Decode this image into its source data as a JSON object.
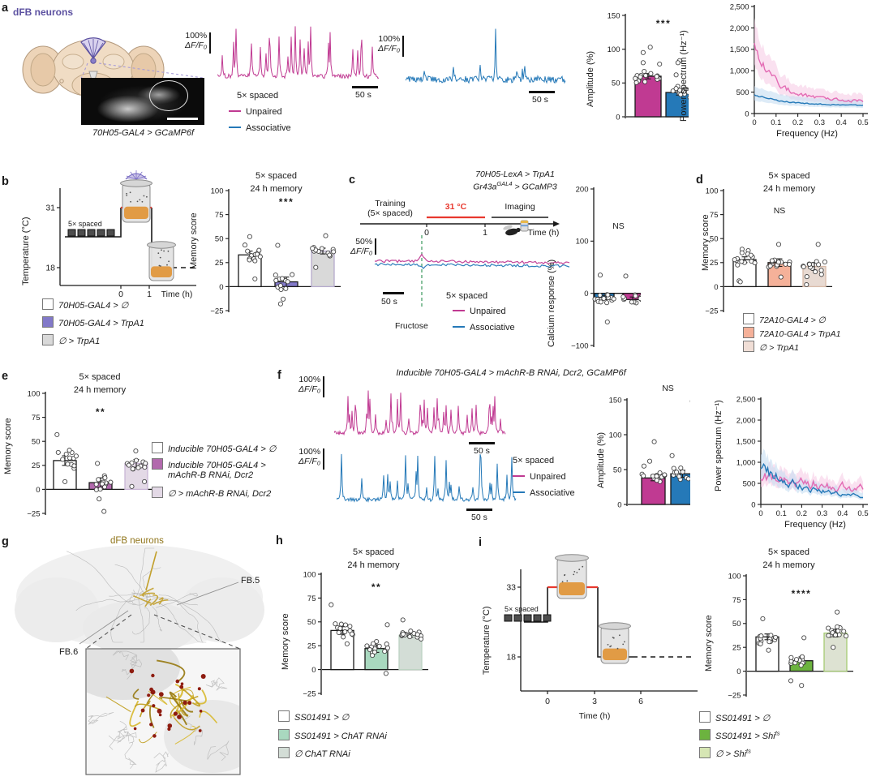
{
  "colors": {
    "unpaired": "#c03a92",
    "associative": "#2579b8",
    "red": "#e8392f",
    "purple": "#5b50a0",
    "dfb_gold": "#8f7419",
    "green_marker": "#4aa06a"
  },
  "panel_a": {
    "label": "a",
    "brain_title": "dFB neurons",
    "caption": "70H05-GAL4 > GCaMP6f",
    "scale_pct": "100%",
    "scale_df": "ΔF/F₀",
    "timebar": "50 s",
    "legend_title": "5× spaced",
    "legend_unpaired": "Unpaired",
    "legend_associative": "Associative"
  },
  "panel_b": {
    "label": "b",
    "legend": [
      {
        "label": "70H05-GAL4 > ∅",
        "swatch": "#ffffff"
      },
      {
        "label": "70H05-GAL4 > TrpA1",
        "swatch": "#8279c9"
      },
      {
        "label": "∅ > TrpA1",
        "swatch": "#d9d9d9"
      }
    ]
  },
  "panel_c": {
    "label": "c",
    "header1": "70H05-LexA > TrpA1",
    "header2": {
      "base": "Gr43a",
      "sup": "GAL4",
      "rest": " > GCaMP3"
    },
    "training1": "Training",
    "training2": "(5× spaced)",
    "temp": "31 °C",
    "imaging": "Imaging",
    "t0": "0",
    "t1": "1",
    "xlabel": "Time (h)",
    "scale_pct": "50%",
    "scale_df": "ΔF/F₀",
    "timebar": "50 s",
    "fructose": "Fructose",
    "legend_title": "5× spaced",
    "legend_unpaired": "Unpaired",
    "legend_associative": "Associative"
  },
  "panel_d": {
    "label": "d",
    "legend": [
      {
        "label": "72A10-GAL4 > ∅",
        "swatch": "#ffffff"
      },
      {
        "label": "72A10-GAL4 > TrpA1",
        "swatch": "#f5b199"
      },
      {
        "label": "∅ > TrpA1",
        "swatch": "#f0ded6"
      }
    ]
  },
  "panel_e": {
    "label": "e",
    "legend": [
      {
        "lines": [
          "Inducible 70H05-GAL4 > ∅"
        ],
        "swatch": "#ffffff"
      },
      {
        "lines": [
          "Inducible 70H05-GAL4 >",
          "mAchR-B RNAi, Dcr2"
        ],
        "swatch": "#b269ad"
      },
      {
        "lines": [
          "∅ > mAchR-B RNAi, Dcr2"
        ],
        "swatch": "#e3d9e6"
      }
    ]
  },
  "panel_f": {
    "label": "f",
    "title": "Inducible 70H05-GAL4 > mAchR-B RNAi, Dcr2, GCaMP6f",
    "scale_pct": "100%",
    "scale_df": "ΔF/F₀",
    "timebar": "50 s",
    "legend_title": "5× spaced",
    "legend_unpaired": "Unpaired",
    "legend_associative": "Associative"
  },
  "panel_g": {
    "label": "g",
    "title": "dFB neurons",
    "fb5": "FB.5",
    "fb6": "FB.6"
  },
  "panel_h": {
    "label": "h",
    "legend": [
      {
        "label": "SS01491 > ∅",
        "swatch": "#ffffff"
      },
      {
        "label": "SS01491 > ChAT RNAi",
        "swatch": "#a9d8bf"
      },
      {
        "label": "∅ ChAT RNAi",
        "swatch": "#d3ddd6"
      }
    ]
  },
  "panel_i": {
    "label": "i",
    "legend": [
      {
        "label": "SS01491 > ∅",
        "swatch": "#ffffff"
      },
      {
        "base": "SS01491 > Shi",
        "sup": "ts",
        "swatch": "#6cb33f"
      },
      {
        "base": "∅ > Shi",
        "sup": "ts",
        "swatch": "#d6e6b4"
      }
    ]
  },
  "chart_data": [
    {
      "id": "a_trace_unpaired",
      "type": "trace",
      "color": "#c03a92",
      "spikes": 26,
      "amp_min": 12,
      "amp_max": 62,
      "noise": 2.6,
      "seed": 11
    },
    {
      "id": "a_trace_associative",
      "type": "trace",
      "color": "#2579b8",
      "spikes": 4,
      "amp_min": 6,
      "amp_max": 16,
      "noise": 4.2,
      "seed": 7,
      "fixed_spikes": [
        {
          "pos": 0.56,
          "amp": 60
        },
        {
          "pos": 0.3,
          "amp": 17
        },
        {
          "pos": 0.74,
          "amp": 13
        }
      ]
    },
    {
      "id": "a_amplitude",
      "type": "bar",
      "ylabel": "Amplitude (%)",
      "ylim": [
        0,
        150
      ],
      "yticks": [
        0,
        50,
        100,
        150
      ],
      "yticklabels": [
        "0",
        "50",
        "100",
        "150"
      ],
      "sig": "***",
      "seed": 3,
      "bars": [
        {
          "name": "Unpaired",
          "value": 60,
          "sem": 4,
          "fill": "#c03a92",
          "n": 17,
          "spread": 13,
          "extra": [
            103,
            95,
            80,
            78
          ]
        },
        {
          "name": "Associative",
          "value": 36,
          "sem": 4,
          "fill": "#2579b8",
          "n": 17,
          "spread": 11,
          "extra": [
            83,
            80,
            62
          ]
        }
      ]
    },
    {
      "id": "a_power",
      "type": "spectrum",
      "ylabel": "Power spectrum (Hz⁻¹)",
      "xlabel": "Frequency (Hz)",
      "ylim": [
        0,
        2500
      ],
      "yticklabels": [
        "0",
        "500",
        "1,000",
        "1,500",
        "2,000",
        "2,500"
      ],
      "xticklabels": [
        "0",
        "0.1",
        "0.2",
        "0.3",
        "0.4",
        "0.5"
      ],
      "series": [
        {
          "name": "Unpaired",
          "color": "#e36bb4",
          "band": "#f7cde6",
          "start": 1500,
          "end": 290,
          "tau": 0.1,
          "noise": 0.2,
          "seed": 5
        },
        {
          "name": "Associative",
          "color": "#2579b8",
          "band": "#c7def1",
          "start": 440,
          "end": 180,
          "tau": 0.15,
          "noise": 0.1,
          "seed": 9
        }
      ]
    },
    {
      "id": "b_temp",
      "type": "temp",
      "ylabel": "Temperature (°C)",
      "high": "31",
      "low": "18",
      "spaced": "5× spaced",
      "xticks": [
        "0",
        "1"
      ],
      "xlabel": "Time (h)",
      "lamp": true
    },
    {
      "id": "b_memory",
      "type": "bar",
      "title": [
        "5× spaced",
        "24 h memory"
      ],
      "ylabel": "Memory score",
      "ylim": [
        -25,
        100
      ],
      "yticks": [
        -25,
        0,
        25,
        50,
        75,
        100
      ],
      "yticklabels": [
        "−25",
        "0",
        "25",
        "50",
        "75",
        "100"
      ],
      "sig": "***",
      "seed": 21,
      "bars": [
        {
          "name": "70H05-GAL4 > ∅",
          "value": 33,
          "sem": 4,
          "fill": "#ffffff",
          "n": 12,
          "spread": 12,
          "extra": [
            52,
            8
          ]
        },
        {
          "name": "70H05-GAL4 > TrpA1",
          "value": 5,
          "sem": 5,
          "fill": "#8279c9",
          "n": 11,
          "spread": 11,
          "extra": [
            43,
            -13,
            -18
          ]
        },
        {
          "name": "∅ > TrpA1",
          "value": 37,
          "sem": 3,
          "fill": "#d9d9d9",
          "stroke2": "#b5aacd",
          "n": 11,
          "spread": 8,
          "extra": [
            53,
            20
          ]
        }
      ]
    },
    {
      "id": "c_traces",
      "type": "flat_traces",
      "colors": [
        "#c03a92",
        "#2579b8"
      ],
      "marker": "#4aa06a",
      "seed": 13
    },
    {
      "id": "c_calcium",
      "type": "bar",
      "ylabel": "Calcium response (%)",
      "ylim": [
        -100,
        200
      ],
      "yticks": [
        -100,
        0,
        100,
        200
      ],
      "yticklabels": [
        "−100",
        "0",
        "100",
        "200"
      ],
      "sig": "NS",
      "seed": 17,
      "bars": [
        {
          "name": "Associative",
          "value": -8,
          "sem": 4,
          "fill": "#2579b8",
          "n": 14,
          "spread": 13,
          "extra": [
            35,
            -55
          ]
        },
        {
          "name": "Unpaired",
          "value": -12,
          "sem": 5,
          "fill": "#c03a92",
          "n": 14,
          "spread": 12,
          "extra": [
            33
          ]
        }
      ]
    },
    {
      "id": "d_memory",
      "type": "bar",
      "title": [
        "5× spaced",
        "24 h memory"
      ],
      "ylabel": "Memory score",
      "ylim": [
        -25,
        100
      ],
      "yticks": [
        -25,
        0,
        25,
        50,
        75,
        100
      ],
      "yticklabels": [
        "−25",
        "0",
        "25",
        "50",
        "75",
        "100"
      ],
      "sig": "NS",
      "seed": 31,
      "bars": [
        {
          "name": "72A10-GAL4 > ∅",
          "value": 28,
          "sem": 3,
          "fill": "#ffffff",
          "n": 14,
          "spread": 11,
          "extra": [
            6,
            5
          ]
        },
        {
          "name": "72A10-GAL4 > TrpA1",
          "value": 25,
          "sem": 4,
          "fill": "#f5b199",
          "n": 13,
          "spread": 10,
          "extra": [
            44,
            10
          ]
        },
        {
          "name": "∅ > TrpA1",
          "value": 21,
          "sem": 4,
          "fill": "#e8dad2",
          "stroke2": "#d8bba9",
          "n": 13,
          "spread": 12,
          "extra": [
            44,
            2
          ]
        }
      ]
    },
    {
      "id": "e_memory",
      "type": "bar",
      "title": [
        "5× spaced",
        "24 h memory"
      ],
      "ylabel": "Memory score",
      "ylim": [
        -25,
        100
      ],
      "yticks": [
        -25,
        0,
        25,
        50,
        75,
        100
      ],
      "yticklabels": [
        "−25",
        "0",
        "25",
        "50",
        "75",
        "100"
      ],
      "sig": "**",
      "seed": 41,
      "bars": [
        {
          "name": "Inducible 70H05-GAL4 > ∅",
          "value": 30,
          "sem": 5,
          "fill": "#ffffff",
          "n": 12,
          "spread": 13,
          "extra": [
            57,
            8
          ]
        },
        {
          "name": "Inducible 70H05-GAL4 > mAchR-B RNAi, Dcr2",
          "value": 7,
          "sem": 5,
          "fill": "#b269ad",
          "n": 12,
          "spread": 10,
          "extra": [
            27,
            -10,
            -24
          ]
        },
        {
          "name": "∅ > mAchR-B RNAi, Dcr2",
          "value": 27,
          "sem": 4,
          "fill": "#e3d9e6",
          "stroke2": "#c9b6d6",
          "n": 11,
          "spread": 9,
          "extra": [
            40,
            8,
            3
          ]
        }
      ]
    },
    {
      "id": "f_trace_unpaired",
      "type": "trace",
      "color": "#c03a92",
      "spikes": 42,
      "amp_min": 12,
      "amp_max": 52,
      "noise": 2.2,
      "seed": 23
    },
    {
      "id": "f_trace_associative",
      "type": "trace",
      "color": "#2579b8",
      "spikes": 26,
      "amp_min": 14,
      "amp_max": 58,
      "noise": 2.2,
      "seed": 29
    },
    {
      "id": "f_amplitude",
      "type": "bar",
      "ylabel": "Amplitude (%)",
      "ylim": [
        0,
        150
      ],
      "yticks": [
        0,
        50,
        100,
        150
      ],
      "yticklabels": [
        "0",
        "50",
        "100",
        "150"
      ],
      "sig": "NS",
      "seed": 37,
      "bars": [
        {
          "name": "Unpaired",
          "value": 38,
          "sem": 4,
          "fill": "#c03a92",
          "n": 14,
          "spread": 10,
          "extra": [
            90,
            62,
            55
          ]
        },
        {
          "name": "Associative",
          "value": 44,
          "sem": 5,
          "fill": "#2579b8",
          "n": 14,
          "spread": 12,
          "extra": [
            150,
            70,
            65
          ]
        }
      ]
    },
    {
      "id": "f_power",
      "type": "spectrum",
      "ylabel": "Power spectrum (Hz⁻¹)",
      "xlabel": "Frequency (Hz)",
      "ylim": [
        0,
        2500
      ],
      "yticklabels": [
        "0",
        "500",
        "1,000",
        "1,500",
        "2,000",
        "2,500"
      ],
      "xticklabels": [
        "0",
        "0.1",
        "0.2",
        "0.3",
        "0.4",
        "0.5"
      ],
      "series": [
        {
          "name": "Unpaired",
          "color": "#e36bb4",
          "band": "#f7cde6",
          "start": 620,
          "end": 260,
          "tau": 0.5,
          "noise": 0.42,
          "seed": 43
        },
        {
          "name": "Associative",
          "color": "#2579b8",
          "band": "#c7def1",
          "start": 900,
          "end": 130,
          "tau": 0.2,
          "noise": 0.35,
          "seed": 47
        }
      ]
    },
    {
      "id": "h_memory",
      "type": "bar",
      "title": [
        "5× spaced",
        "24 h memory"
      ],
      "ylabel": "Memory score",
      "ylim": [
        -25,
        100
      ],
      "yticks": [
        -25,
        0,
        25,
        50,
        75,
        100
      ],
      "yticklabels": [
        "−25",
        "0",
        "25",
        "50",
        "75",
        "100"
      ],
      "sig": "**",
      "seed": 51,
      "bars": [
        {
          "name": "SS01491 > ∅",
          "value": 41,
          "sem": 4,
          "fill": "#ffffff",
          "n": 12,
          "spread": 9,
          "extra": [
            68,
            27
          ]
        },
        {
          "name": "SS01491 > ChAT RNAi",
          "value": 22,
          "sem": 4,
          "fill": "#a9d8bf",
          "n": 14,
          "spread": 10,
          "extra": [
            47,
            -4
          ]
        },
        {
          "name": "∅ ChAT RNAi",
          "value": 36,
          "sem": 2,
          "fill": "#d3ddd6",
          "stroke2": "#bcd3c2",
          "n": 14,
          "spread": 6,
          "extra": [
            52
          ]
        }
      ]
    },
    {
      "id": "i_temp",
      "type": "temp",
      "ylabel": "Temperature (°C)",
      "high": "33",
      "low": "18",
      "spaced": "5× spaced",
      "xticks": [
        "0",
        "3",
        "6"
      ],
      "xlabel": "Time (h)",
      "lamp": false
    },
    {
      "id": "i_memory",
      "type": "bar",
      "title": [
        "5× spaced",
        "24 h memory"
      ],
      "ylabel": "Memory score",
      "ylim": [
        -25,
        100
      ],
      "yticks": [
        -25,
        0,
        25,
        50,
        75,
        100
      ],
      "yticklabels": [
        "−25",
        "0",
        "25",
        "50",
        "75",
        "100"
      ],
      "sig": "****",
      "seed": 61,
      "bars": [
        {
          "name": "SS01491 > Ø",
          "value": 36,
          "sem": 3,
          "fill": "#ffffff",
          "n": 12,
          "spread": 9,
          "extra": [
            55,
            22
          ]
        },
        {
          "name": "SS01491 > Shi ts",
          "value": 11,
          "sem": 4,
          "fill": "#6cb33f",
          "n": 12,
          "spread": 8,
          "extra": [
            35,
            -10,
            -15
          ]
        },
        {
          "name": "∅ > Shi ts",
          "value": 40,
          "sem": 4,
          "fill": "#dde2d2",
          "stroke2": "#a6cb74",
          "n": 12,
          "spread": 10,
          "extra": [
            62,
            25
          ]
        }
      ]
    }
  ]
}
